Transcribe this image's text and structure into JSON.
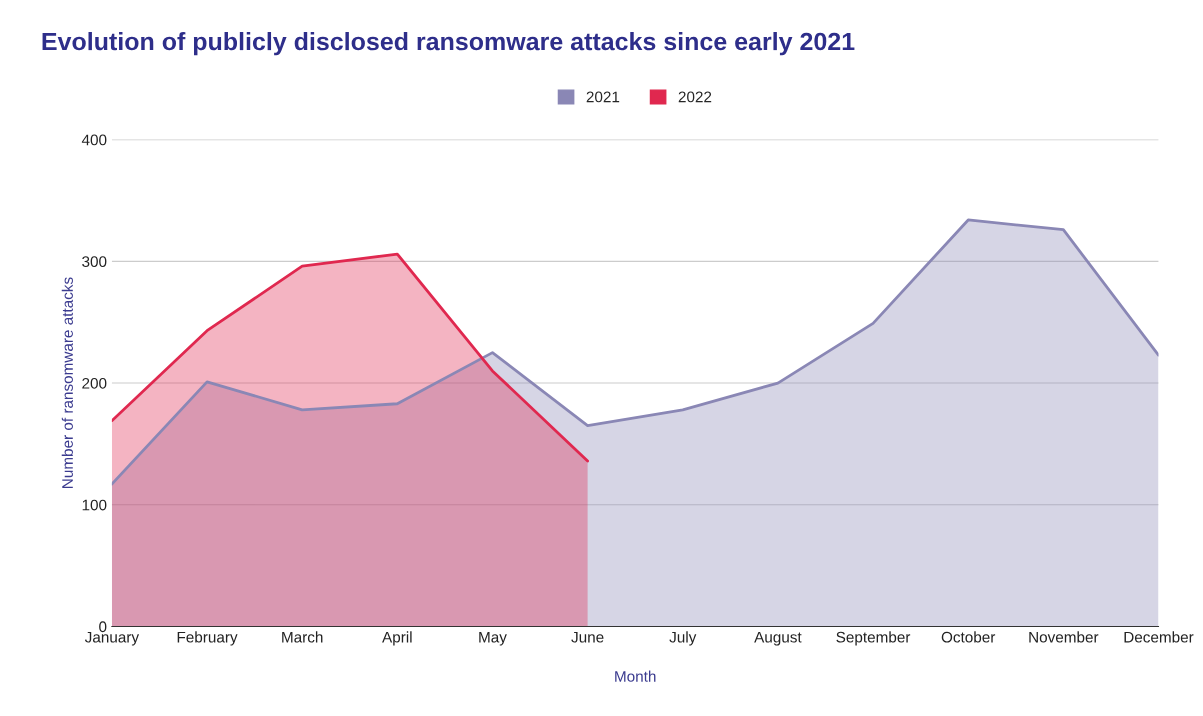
{
  "chart_data": {
    "type": "area",
    "title": "Evolution of publicly disclosed ransomware attacks since early 2021",
    "xlabel": "Month",
    "ylabel": "Number of ransomware attacks",
    "categories": [
      "January",
      "February",
      "March",
      "April",
      "May",
      "June",
      "July",
      "August",
      "September",
      "October",
      "November",
      "December"
    ],
    "series": [
      {
        "name": "2021",
        "color": "#8a87b5",
        "values": [
          117,
          201,
          178,
          183,
          225,
          165,
          178,
          200,
          249,
          334,
          326,
          223
        ]
      },
      {
        "name": "2022",
        "color": "#e0284f",
        "values": [
          169,
          243,
          296,
          306,
          210,
          136,
          null,
          null,
          null,
          null,
          null,
          null
        ]
      }
    ],
    "ylim": [
      0,
      400
    ],
    "yticks": [
      0,
      100,
      200,
      300,
      400
    ],
    "grid": "y",
    "legend": "top"
  }
}
